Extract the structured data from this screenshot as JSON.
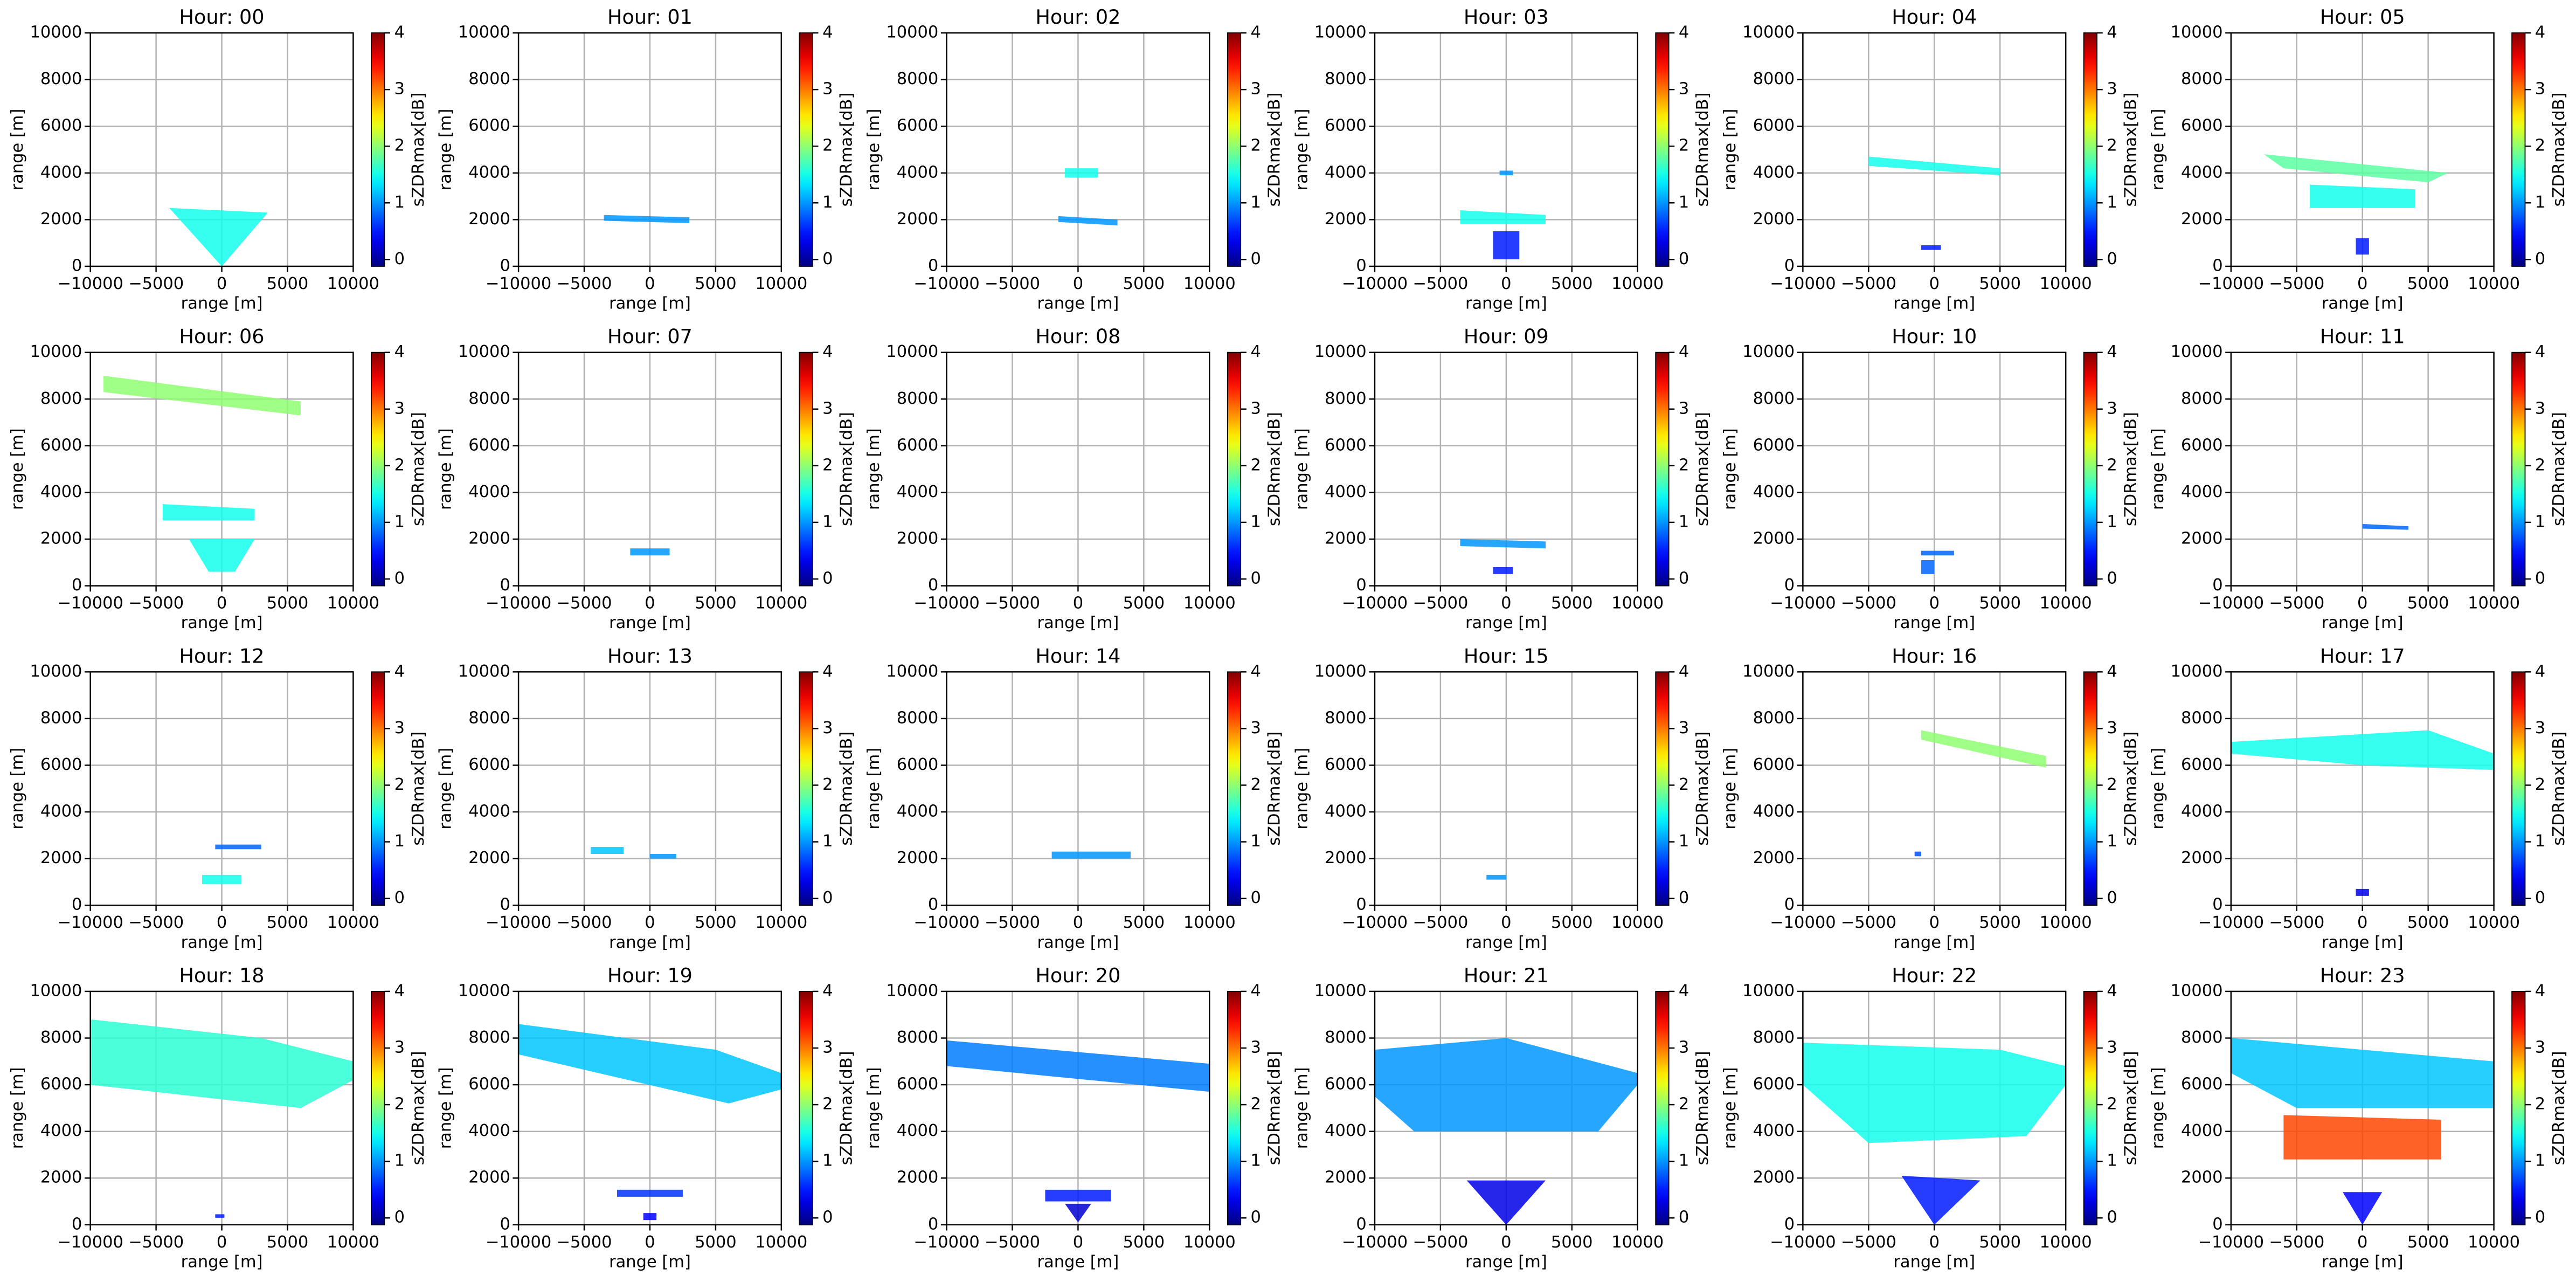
{
  "chart_data": [
    {
      "type": "ppi",
      "title": "Hour: 00",
      "echoes": [
        {
          "x": [
            -4000,
            3500,
            0
          ],
          "y": [
            2500,
            2300,
            0
          ],
          "zdr": 1.5
        }
      ]
    },
    {
      "type": "ppi",
      "title": "Hour: 01",
      "echoes": [
        {
          "x": [
            -3500,
            3000,
            3000,
            -3500
          ],
          "y": [
            1950,
            1850,
            2100,
            2200
          ],
          "zdr": 1
        }
      ]
    },
    {
      "type": "ppi",
      "title": "Hour: 02",
      "echoes": [
        {
          "x": [
            -1000,
            1500,
            1500,
            -1000
          ],
          "y": [
            3800,
            3800,
            4200,
            4200
          ],
          "zdr": 1.5
        },
        {
          "x": [
            -1500,
            3000,
            3000,
            -1500
          ],
          "y": [
            1900,
            1750,
            2000,
            2150
          ],
          "zdr": 1
        }
      ]
    },
    {
      "type": "ppi",
      "title": "Hour: 03",
      "echoes": [
        {
          "x": [
            -500,
            500,
            500,
            -500
          ],
          "y": [
            3900,
            3900,
            4100,
            4100
          ],
          "zdr": 1
        },
        {
          "x": [
            -3500,
            3000,
            3000,
            -3500
          ],
          "y": [
            1800,
            1800,
            2200,
            2400
          ],
          "zdr": 1.5
        },
        {
          "x": [
            -1000,
            1000,
            1000,
            -1000
          ],
          "y": [
            300,
            300,
            1500,
            1500
          ],
          "zdr": 0.5
        }
      ]
    },
    {
      "type": "ppi",
      "title": "Hour: 04",
      "echoes": [
        {
          "x": [
            -5000,
            5000,
            5000,
            -5000
          ],
          "y": [
            4300,
            3900,
            4200,
            4700
          ],
          "zdr": 1.5
        },
        {
          "x": [
            -1000,
            500,
            500,
            -1000
          ],
          "y": [
            700,
            700,
            900,
            900
          ],
          "zdr": 0.5
        }
      ]
    },
    {
      "type": "ppi",
      "title": "Hour: 05",
      "echoes": [
        {
          "x": [
            -7500,
            6500,
            5000,
            -6000
          ],
          "y": [
            4800,
            4000,
            3600,
            4200
          ],
          "zdr": 1.8
        },
        {
          "x": [
            -4000,
            4000,
            4000,
            -4000
          ],
          "y": [
            2500,
            2500,
            3300,
            3500
          ],
          "zdr": 1.5
        },
        {
          "x": [
            -500,
            500,
            500,
            -500
          ],
          "y": [
            500,
            500,
            1200,
            1200
          ],
          "zdr": 0.5
        }
      ]
    },
    {
      "type": "ppi",
      "title": "Hour: 06",
      "echoes": [
        {
          "x": [
            -9000,
            6000,
            6000,
            -9000
          ],
          "y": [
            9000,
            7900,
            7300,
            8300
          ],
          "zdr": 2
        },
        {
          "x": [
            -4500,
            2500,
            2500,
            -4500
          ],
          "y": [
            2800,
            2800,
            3300,
            3500
          ],
          "zdr": 1.5
        },
        {
          "x": [
            -2500,
            2500,
            1000,
            -1000
          ],
          "y": [
            2000,
            2000,
            600,
            600
          ],
          "zdr": 1.5
        }
      ]
    },
    {
      "type": "ppi",
      "title": "Hour: 07",
      "echoes": [
        {
          "x": [
            -1500,
            1500,
            1500,
            -1500
          ],
          "y": [
            1300,
            1300,
            1600,
            1600
          ],
          "zdr": 1
        }
      ]
    },
    {
      "type": "ppi",
      "title": "Hour: 08",
      "echoes": []
    },
    {
      "type": "ppi",
      "title": "Hour: 09",
      "echoes": [
        {
          "x": [
            -3500,
            3000,
            3000,
            -3500
          ],
          "y": [
            1700,
            1600,
            1900,
            2000
          ],
          "zdr": 1
        },
        {
          "x": [
            -1000,
            500,
            500,
            -1000
          ],
          "y": [
            500,
            500,
            800,
            800
          ],
          "zdr": 0.5
        }
      ]
    },
    {
      "type": "ppi",
      "title": "Hour: 10",
      "echoes": [
        {
          "x": [
            -1000,
            1500,
            1500,
            -1000
          ],
          "y": [
            1300,
            1300,
            1500,
            1500
          ],
          "zdr": 0.8
        },
        {
          "x": [
            -1000,
            0,
            0,
            -1000
          ],
          "y": [
            500,
            500,
            1100,
            1100
          ],
          "zdr": 0.8
        }
      ]
    },
    {
      "type": "ppi",
      "title": "Hour: 11",
      "echoes": [
        {
          "x": [
            0,
            3500,
            3500,
            0
          ],
          "y": [
            2450,
            2400,
            2550,
            2650
          ],
          "zdr": 0.8
        }
      ]
    },
    {
      "type": "ppi",
      "title": "Hour: 12",
      "echoes": [
        {
          "x": [
            -500,
            3000,
            3000,
            -500
          ],
          "y": [
            2400,
            2400,
            2600,
            2600
          ],
          "zdr": 0.8
        },
        {
          "x": [
            -1500,
            1500,
            1500,
            -1500
          ],
          "y": [
            900,
            900,
            1300,
            1300
          ],
          "zdr": 1.5
        }
      ]
    },
    {
      "type": "ppi",
      "title": "Hour: 13",
      "echoes": [
        {
          "x": [
            -4500,
            -2000,
            -2000,
            -4500
          ],
          "y": [
            2200,
            2200,
            2500,
            2500
          ],
          "zdr": 1.2
        },
        {
          "x": [
            0,
            2000,
            2000,
            0
          ],
          "y": [
            2000,
            2000,
            2200,
            2200
          ],
          "zdr": 1
        }
      ]
    },
    {
      "type": "ppi",
      "title": "Hour: 14",
      "echoes": [
        {
          "x": [
            -2000,
            4000,
            4000,
            -2000
          ],
          "y": [
            2000,
            2000,
            2300,
            2300
          ],
          "zdr": 1
        }
      ]
    },
    {
      "type": "ppi",
      "title": "Hour: 15",
      "echoes": [
        {
          "x": [
            -1500,
            0,
            0,
            -1500
          ],
          "y": [
            1100,
            1100,
            1300,
            1300
          ],
          "zdr": 1
        }
      ]
    },
    {
      "type": "ppi",
      "title": "Hour: 16",
      "echoes": [
        {
          "x": [
            -1000,
            8500,
            8500,
            -1000
          ],
          "y": [
            7500,
            6400,
            5900,
            7100
          ],
          "zdr": 2
        },
        {
          "x": [
            -1500,
            -1000,
            -1000,
            -1500
          ],
          "y": [
            2100,
            2100,
            2300,
            2300
          ],
          "zdr": 0.7
        }
      ]
    },
    {
      "type": "ppi",
      "title": "Hour: 17",
      "echoes": [
        {
          "x": [
            -10000,
            5000,
            10000,
            10000,
            0,
            -10000
          ],
          "y": [
            7000,
            7500,
            6500,
            5800,
            6000,
            6500
          ],
          "zdr": 1.5
        },
        {
          "x": [
            -500,
            500,
            500,
            -500
          ],
          "y": [
            400,
            400,
            700,
            700
          ],
          "zdr": 0.3
        }
      ]
    },
    {
      "type": "ppi",
      "title": "Hour: 18",
      "echoes": [
        {
          "x": [
            -10000,
            3000,
            10000,
            10000,
            6000,
            -10000
          ],
          "y": [
            8800,
            8000,
            7000,
            6200,
            5000,
            6000
          ],
          "zdr": 1.6
        },
        {
          "x": [
            -500,
            200,
            200,
            -500
          ],
          "y": [
            300,
            300,
            450,
            450
          ],
          "zdr": 0.5
        }
      ]
    },
    {
      "type": "ppi",
      "title": "Hour: 19",
      "echoes": [
        {
          "x": [
            -10000,
            5000,
            10000,
            10000,
            6000,
            -10000
          ],
          "y": [
            8600,
            7500,
            6500,
            5800,
            5200,
            7300
          ],
          "zdr": 1.2
        },
        {
          "x": [
            -2500,
            2500,
            2500,
            -2500
          ],
          "y": [
            1200,
            1200,
            1500,
            1500
          ],
          "zdr": 0.6
        },
        {
          "x": [
            -500,
            500,
            500,
            -500
          ],
          "y": [
            200,
            200,
            500,
            500
          ],
          "zdr": 0.4
        }
      ]
    },
    {
      "type": "ppi",
      "title": "Hour: 20",
      "echoes": [
        {
          "x": [
            -10000,
            10000,
            10000,
            -10000
          ],
          "y": [
            7900,
            6900,
            5700,
            6800
          ],
          "zdr": 0.9
        },
        {
          "x": [
            -2500,
            2500,
            2500,
            -2500
          ],
          "y": [
            1000,
            1000,
            1500,
            1500
          ],
          "zdr": 0.5
        },
        {
          "x": [
            -1000,
            1000,
            0
          ],
          "y": [
            900,
            900,
            100
          ],
          "zdr": 0.2
        }
      ]
    },
    {
      "type": "ppi",
      "title": "Hour: 21",
      "echoes": [
        {
          "x": [
            -10000,
            0,
            10000,
            10000,
            7000,
            -7000,
            -10000
          ],
          "y": [
            7500,
            8000,
            6500,
            6000,
            4000,
            4000,
            5500
          ],
          "zdr": 1
        },
        {
          "x": [
            -3000,
            3000,
            0
          ],
          "y": [
            1900,
            1900,
            0
          ],
          "zdr": 0.3
        }
      ]
    },
    {
      "type": "ppi",
      "title": "Hour: 22",
      "echoes": [
        {
          "x": [
            -10000,
            5000,
            10000,
            10000,
            7000,
            -5000,
            -10000
          ],
          "y": [
            7800,
            7500,
            6800,
            6000,
            3800,
            3500,
            6000
          ],
          "zdr": 1.5
        },
        {
          "x": [
            -2500,
            3500,
            0
          ],
          "y": [
            2100,
            1900,
            0
          ],
          "zdr": 0.5
        }
      ]
    },
    {
      "type": "ppi",
      "title": "Hour: 23",
      "echoes": [
        {
          "x": [
            -10000,
            10000,
            10000,
            -5000,
            -10000
          ],
          "y": [
            8000,
            7000,
            5000,
            5000,
            6500
          ],
          "zdr": 1.2
        },
        {
          "x": [
            -6000,
            6000,
            6000,
            -6000
          ],
          "y": [
            2800,
            2800,
            4500,
            4700
          ],
          "zdr": 3.2
        },
        {
          "x": [
            -1500,
            1500,
            0
          ],
          "y": [
            1400,
            1400,
            0
          ],
          "zdr": 0.4
        }
      ]
    }
  ],
  "axes": {
    "xlabel": "range [m]",
    "ylabel": "range [m]",
    "xlim": [
      -10000,
      10000
    ],
    "ylim": [
      0,
      10000
    ],
    "xticks": [
      {
        "value": -10000,
        "label": "−10000"
      },
      {
        "value": -5000,
        "label": "−5000"
      },
      0,
      5000,
      10000
    ],
    "yticks": [
      0,
      2000,
      4000,
      6000,
      8000,
      10000
    ],
    "grid": true,
    "colorbar_label": "sZDRmax[dB]",
    "clim": [
      -0.12,
      4
    ],
    "cticks": [
      0,
      1,
      2,
      3,
      4
    ],
    "colormap": "jet"
  }
}
